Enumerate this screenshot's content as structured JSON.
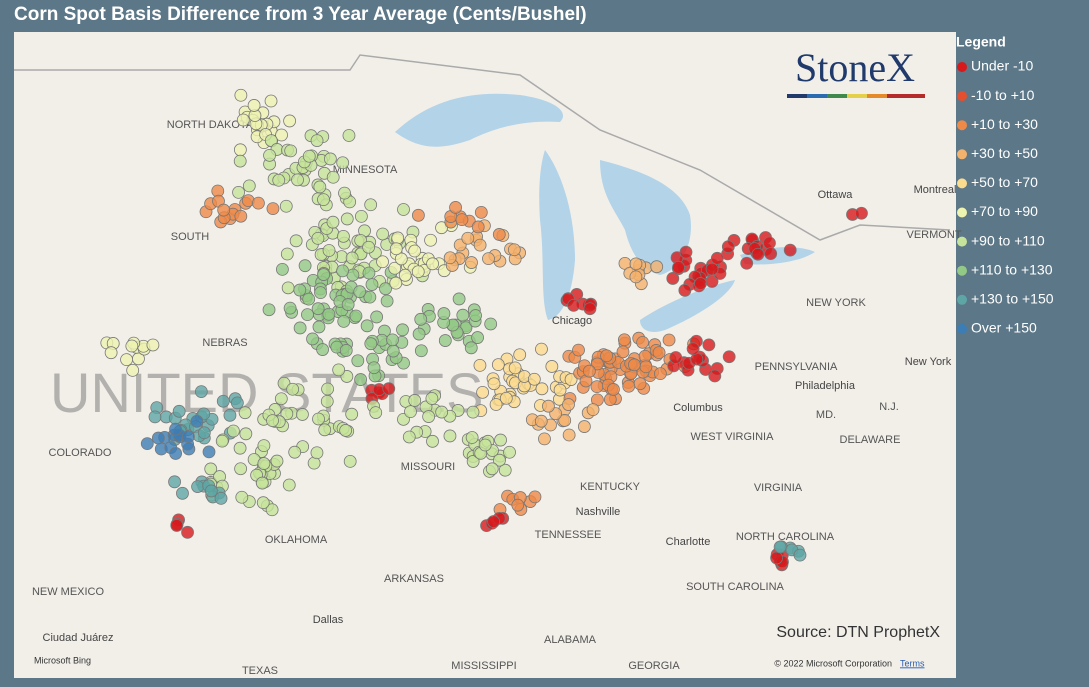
{
  "title": "Corn Spot Basis Difference from 3 Year Average (Cents/Bushel)",
  "legend": {
    "title": "Legend",
    "items": [
      {
        "label": "Under -10",
        "color": "#d7191c"
      },
      {
        "label": "-10 to +10",
        "color": "#e4502f"
      },
      {
        "label": "+10 to +30",
        "color": "#ee8a48"
      },
      {
        "label": "+30 to +50",
        "color": "#f5b26c"
      },
      {
        "label": "+50 to +70",
        "color": "#fbdb8e"
      },
      {
        "label": "+70 to +90",
        "color": "#eef3b0"
      },
      {
        "label": "+90 to +110",
        "color": "#c5e39a"
      },
      {
        "label": "+110 to +130",
        "color": "#93c986"
      },
      {
        "label": "+130 to +150",
        "color": "#5ea6a5"
      },
      {
        "label": "Over +150",
        "color": "#3d7db5"
      }
    ]
  },
  "logo": "StoneX",
  "source": "Source: DTN ProphetX",
  "copyright": "© 2022 Microsoft Corporation",
  "terms": "Terms",
  "bing": "Microsoft Bing",
  "map_labels": [
    "NORTH DAKOTA",
    "MINNESOTA",
    "SOUTH",
    "NEBRAS",
    "UNITED STATES",
    "COLORADO",
    "MISSOURI",
    "OKLAHOMA",
    "ARKANSAS",
    "KENTUCKY",
    "TENNESSEE",
    "WEST VIRGINIA",
    "VIRGINIA",
    "NORTH CAROLINA",
    "SOUTH CAROLINA",
    "PENNSYLVANIA",
    "NEW YORK",
    "NEW MEXICO",
    "TEXAS",
    "ALABAMA",
    "MISSISSIPPI",
    "GEORGIA",
    "Chicago",
    "Columbus",
    "Nashville",
    "Charlotte",
    "Philadelphia",
    "Ottawa",
    "Montreal",
    "Dallas",
    "Ciudad Juárez",
    "New York",
    "MD.",
    "N.J.",
    "DELAWARE",
    "VERMONT"
  ]
}
